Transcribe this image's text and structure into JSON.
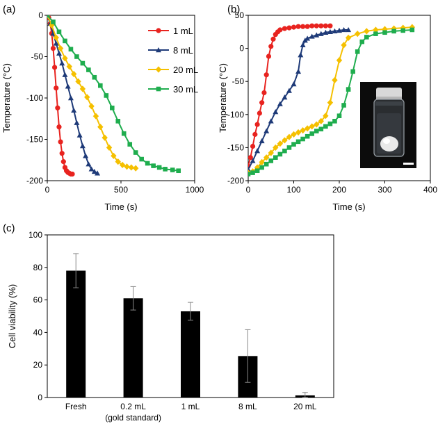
{
  "chart_data": [
    {
      "panel": "(a)",
      "type": "line",
      "title": "",
      "xlabel": "Time (s)",
      "ylabel": "Temperature (°C)",
      "xlim": [
        0,
        1000
      ],
      "ylim": [
        -200,
        0
      ],
      "xticks": [
        0,
        500,
        1000
      ],
      "yticks": [
        0,
        -50,
        -100,
        -150,
        -200
      ],
      "legend_position": "top-right",
      "series": [
        {
          "name": "1 mL",
          "color": "#e8231f",
          "marker": "circle",
          "x": [
            0,
            10,
            20,
            30,
            40,
            50,
            60,
            70,
            80,
            90,
            100,
            110,
            120,
            130,
            140,
            150,
            160,
            170
          ],
          "y": [
            0,
            -3,
            -10,
            -22,
            -40,
            -63,
            -88,
            -112,
            -135,
            -153,
            -167,
            -177,
            -184,
            -188,
            -190,
            -191,
            -192,
            -192
          ]
        },
        {
          "name": "8 mL",
          "color": "#1e3a78",
          "marker": "triangle",
          "x": [
            0,
            20,
            40,
            60,
            80,
            100,
            120,
            140,
            160,
            180,
            200,
            220,
            240,
            260,
            280,
            300,
            320,
            340
          ],
          "y": [
            0,
            -10,
            -22,
            -34,
            -46,
            -58,
            -72,
            -86,
            -100,
            -115,
            -130,
            -145,
            -158,
            -170,
            -180,
            -186,
            -189,
            -191
          ]
        },
        {
          "name": "20 mL",
          "color": "#f5c000",
          "marker": "diamond",
          "x": [
            0,
            30,
            60,
            90,
            120,
            150,
            180,
            210,
            240,
            270,
            300,
            330,
            360,
            390,
            420,
            450,
            480,
            510,
            540,
            570,
            600
          ],
          "y": [
            0,
            -12,
            -27,
            -40,
            -52,
            -62,
            -71,
            -80,
            -89,
            -99,
            -110,
            -122,
            -135,
            -148,
            -160,
            -170,
            -177,
            -181,
            -183,
            -184,
            -185
          ]
        },
        {
          "name": "30 mL",
          "color": "#1fad4e",
          "marker": "square",
          "x": [
            0,
            40,
            80,
            120,
            160,
            200,
            240,
            280,
            320,
            360,
            400,
            440,
            480,
            520,
            560,
            600,
            640,
            680,
            720,
            760,
            800,
            850,
            890
          ],
          "y": [
            0,
            -8,
            -20,
            -31,
            -41,
            -50,
            -58,
            -66,
            -75,
            -85,
            -97,
            -112,
            -128,
            -143,
            -156,
            -166,
            -174,
            -179,
            -182,
            -184,
            -186,
            -187,
            -188
          ]
        }
      ]
    },
    {
      "panel": "(b)",
      "type": "line",
      "title": "",
      "xlabel": "Time (s)",
      "ylabel": "Temperature (°C)",
      "xlim": [
        0,
        400
      ],
      "ylim": [
        -200,
        50
      ],
      "xticks": [
        0,
        100,
        200,
        300,
        400
      ],
      "yticks": [
        50,
        0,
        -50,
        -100,
        -150,
        -200
      ],
      "inset": "photo of vial with frozen sample",
      "series": [
        {
          "name": "1 mL",
          "color": "#e8231f",
          "marker": "circle",
          "x": [
            0,
            5,
            10,
            15,
            20,
            25,
            30,
            35,
            40,
            45,
            50,
            55,
            60,
            65,
            70,
            80,
            90,
            100,
            110,
            120,
            130,
            140,
            150,
            160,
            170,
            180
          ],
          "y": [
            -178,
            -165,
            -148,
            -130,
            -115,
            -98,
            -82,
            -67,
            -40,
            -12,
            3,
            14,
            21,
            25,
            28,
            30,
            31,
            32,
            33,
            33,
            33,
            34,
            34,
            34,
            34,
            34
          ]
        },
        {
          "name": "8 mL",
          "color": "#1e3a78",
          "marker": "triangle",
          "x": [
            0,
            10,
            20,
            30,
            40,
            50,
            60,
            70,
            80,
            90,
            100,
            110,
            115,
            120,
            125,
            130,
            140,
            150,
            160,
            170,
            180,
            190,
            200,
            210,
            220
          ],
          "y": [
            -183,
            -170,
            -155,
            -140,
            -125,
            -110,
            -96,
            -84,
            -74,
            -64,
            -54,
            -35,
            -10,
            5,
            12,
            15,
            18,
            20,
            22,
            24,
            25,
            26,
            27,
            28,
            28
          ]
        },
        {
          "name": "20 mL",
          "color": "#f5c000",
          "marker": "diamond",
          "x": [
            0,
            10,
            20,
            30,
            40,
            50,
            60,
            70,
            80,
            90,
            100,
            110,
            120,
            130,
            140,
            150,
            160,
            170,
            180,
            190,
            200,
            210,
            220,
            240,
            260,
            280,
            300,
            320,
            340,
            360
          ],
          "y": [
            -188,
            -186,
            -180,
            -172,
            -165,
            -158,
            -150,
            -144,
            -139,
            -134,
            -130,
            -127,
            -124,
            -121,
            -118,
            -115,
            -110,
            -102,
            -82,
            -48,
            -18,
            5,
            16,
            22,
            26,
            28,
            29,
            30,
            31,
            32
          ]
        },
        {
          "name": "30 mL",
          "color": "#1fad4e",
          "marker": "square",
          "x": [
            0,
            10,
            20,
            30,
            40,
            50,
            60,
            70,
            80,
            90,
            100,
            110,
            120,
            130,
            140,
            150,
            160,
            170,
            180,
            190,
            200,
            210,
            220,
            230,
            240,
            250,
            260,
            280,
            300,
            320,
            340,
            360
          ],
          "y": [
            -190,
            -188,
            -185,
            -180,
            -175,
            -170,
            -165,
            -160,
            -155,
            -150,
            -145,
            -141,
            -137,
            -133,
            -129,
            -125,
            -122,
            -118,
            -114,
            -110,
            -102,
            -86,
            -62,
            -35,
            -5,
            10,
            17,
            22,
            24,
            26,
            27,
            28
          ]
        }
      ]
    },
    {
      "panel": "(c)",
      "type": "bar",
      "title": "",
      "xlabel": "",
      "ylabel": "Cell viability (%)",
      "ylim": [
        0,
        100
      ],
      "yticks": [
        0,
        20,
        40,
        60,
        80,
        100
      ],
      "categories": [
        "Fresh",
        "0.2 mL",
        "1 mL",
        "8 mL",
        "20 mL"
      ],
      "category_sublabels": [
        "",
        "(gold standard)",
        "",
        "",
        ""
      ],
      "values": [
        78,
        61,
        53,
        25.5,
        1.3
      ],
      "errors": [
        10.5,
        7.2,
        5.5,
        16.2,
        1.8
      ],
      "bar_color": "#000000"
    }
  ]
}
